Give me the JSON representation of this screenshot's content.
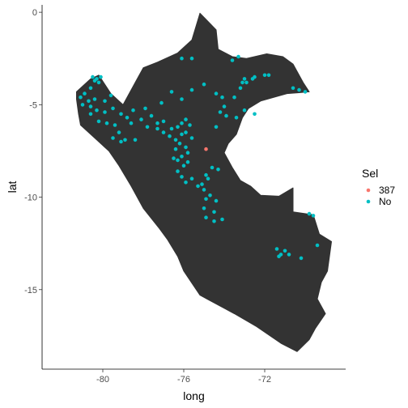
{
  "chart_data": {
    "type": "scatter",
    "xlabel": "long",
    "ylabel": "lat",
    "xlim": [
      -83,
      -68
    ],
    "ylim": [
      -19.3,
      0.4
    ],
    "x_ticks": [
      -80,
      -76,
      -72
    ],
    "x_tick_labels": [
      "-80",
      "-76",
      "-72"
    ],
    "y_ticks": [
      0,
      -5,
      -10,
      -15
    ],
    "y_tick_labels": [
      "0",
      "-5",
      "-10",
      "-15"
    ],
    "grid": false,
    "map_fill": "#333333",
    "map_outline": [
      [
        -75.2,
        -0.05
      ],
      [
        -74.4,
        -0.95
      ],
      [
        -74.3,
        -2.0
      ],
      [
        -73.6,
        -2.4
      ],
      [
        -72.9,
        -2.5
      ],
      [
        -71.9,
        -2.25
      ],
      [
        -71.1,
        -2.4
      ],
      [
        -70.6,
        -2.8
      ],
      [
        -70.1,
        -3.8
      ],
      [
        -69.8,
        -4.3
      ],
      [
        -70.3,
        -4.35
      ],
      [
        -70.9,
        -4.4
      ],
      [
        -72.2,
        -4.8
      ],
      [
        -72.8,
        -5.2
      ],
      [
        -73.1,
        -5.7
      ],
      [
        -73.4,
        -6.6
      ],
      [
        -73.8,
        -7.1
      ],
      [
        -74.0,
        -7.6
      ],
      [
        -73.6,
        -8.4
      ],
      [
        -73.2,
        -9.1
      ],
      [
        -72.7,
        -9.4
      ],
      [
        -72.2,
        -9.9
      ],
      [
        -71.3,
        -9.95
      ],
      [
        -70.6,
        -9.5
      ],
      [
        -70.6,
        -10.8
      ],
      [
        -69.6,
        -10.95
      ],
      [
        -69.3,
        -12.0
      ],
      [
        -68.7,
        -12.4
      ],
      [
        -68.9,
        -14.0
      ],
      [
        -69.2,
        -14.6
      ],
      [
        -69.4,
        -15.5
      ],
      [
        -69.0,
        -16.3
      ],
      [
        -69.5,
        -17.1
      ],
      [
        -69.8,
        -17.7
      ],
      [
        -70.4,
        -18.35
      ],
      [
        -71.2,
        -17.9
      ],
      [
        -72.4,
        -17.0
      ],
      [
        -73.5,
        -16.3
      ],
      [
        -75.2,
        -15.3
      ],
      [
        -76.0,
        -14.0
      ],
      [
        -76.3,
        -13.2
      ],
      [
        -76.8,
        -12.3
      ],
      [
        -77.2,
        -11.7
      ],
      [
        -78.0,
        -10.6
      ],
      [
        -78.6,
        -9.4
      ],
      [
        -79.2,
        -8.3
      ],
      [
        -79.7,
        -7.5
      ],
      [
        -80.3,
        -6.9
      ],
      [
        -81.1,
        -6.1
      ],
      [
        -81.2,
        -5.5
      ],
      [
        -81.3,
        -4.7
      ],
      [
        -81.3,
        -4.3
      ],
      [
        -80.6,
        -3.6
      ],
      [
        -80.2,
        -3.4
      ],
      [
        -79.6,
        -4.4
      ],
      [
        -79.0,
        -5.0
      ],
      [
        -78.3,
        -3.6
      ],
      [
        -78.0,
        -3.0
      ],
      [
        -77.3,
        -2.7
      ],
      [
        -76.3,
        -2.2
      ],
      [
        -75.6,
        -1.5
      ],
      [
        -75.2,
        -0.05
      ]
    ],
    "legend": {
      "title": "Sel",
      "position": "right",
      "entries": [
        {
          "label": "387",
          "color": "#F8766D"
        },
        {
          "label": "No",
          "color": "#00BFC4"
        }
      ]
    },
    "series": [
      {
        "name": "387",
        "color": "#F8766D",
        "points": [
          [
            -74.9,
            -7.4
          ]
        ]
      },
      {
        "name": "No",
        "color": "#00BFC4",
        "points": [
          [
            -80.3,
            -3.6
          ],
          [
            -80.2,
            -3.8
          ],
          [
            -80.5,
            -3.5
          ],
          [
            -80.4,
            -3.7
          ],
          [
            -80.1,
            -3.5
          ],
          [
            -80.6,
            -4.1
          ],
          [
            -80.9,
            -4.4
          ],
          [
            -81.1,
            -4.6
          ],
          [
            -80.7,
            -4.8
          ],
          [
            -80.4,
            -4.7
          ],
          [
            -81.0,
            -5.0
          ],
          [
            -80.6,
            -5.1
          ],
          [
            -80.3,
            -5.3
          ],
          [
            -79.9,
            -4.8
          ],
          [
            -79.6,
            -4.5
          ],
          [
            -79.5,
            -5.2
          ],
          [
            -79.9,
            -5.4
          ],
          [
            -80.6,
            -5.5
          ],
          [
            -80.2,
            -5.9
          ],
          [
            -79.8,
            -6.0
          ],
          [
            -79.4,
            -6.1
          ],
          [
            -79.1,
            -5.5
          ],
          [
            -78.8,
            -5.7
          ],
          [
            -79.2,
            -6.5
          ],
          [
            -79.5,
            -6.8
          ],
          [
            -79.1,
            -7.0
          ],
          [
            -78.9,
            -6.9
          ],
          [
            -78.4,
            -6.9
          ],
          [
            -77.9,
            -5.2
          ],
          [
            -77.6,
            -5.6
          ],
          [
            -77.3,
            -6.0
          ],
          [
            -77.0,
            -5.9
          ],
          [
            -76.6,
            -6.3
          ],
          [
            -76.3,
            -6.2
          ],
          [
            -76.1,
            -6.0
          ],
          [
            -75.9,
            -5.8
          ],
          [
            -75.7,
            -6.1
          ],
          [
            -77.8,
            -6.2
          ],
          [
            -77.3,
            -6.3
          ],
          [
            -77.0,
            -6.5
          ],
          [
            -76.7,
            -6.7
          ],
          [
            -76.4,
            -6.9
          ],
          [
            -76.1,
            -6.6
          ],
          [
            -75.9,
            -6.5
          ],
          [
            -75.6,
            -6.8
          ],
          [
            -76.2,
            -7.1
          ],
          [
            -75.9,
            -7.3
          ],
          [
            -76.4,
            -7.4
          ],
          [
            -75.8,
            -7.6
          ],
          [
            -76.1,
            -7.8
          ],
          [
            -76.5,
            -7.9
          ],
          [
            -76.3,
            -8.0
          ],
          [
            -75.8,
            -8.1
          ],
          [
            -76.0,
            -8.3
          ],
          [
            -76.3,
            -8.6
          ],
          [
            -76.1,
            -8.9
          ],
          [
            -75.9,
            -9.2
          ],
          [
            -75.6,
            -9.0
          ],
          [
            -75.3,
            -9.4
          ],
          [
            -75.0,
            -9.6
          ],
          [
            -74.7,
            -9.9
          ],
          [
            -74.4,
            -10.2
          ],
          [
            -74.9,
            -10.1
          ],
          [
            -75.0,
            -10.6
          ],
          [
            -74.5,
            -10.8
          ],
          [
            -74.9,
            -11.1
          ],
          [
            -74.5,
            -11.3
          ],
          [
            -74.1,
            -11.2
          ],
          [
            -74.6,
            -8.4
          ],
          [
            -74.3,
            -8.5
          ],
          [
            -74.9,
            -8.8
          ],
          [
            -75.1,
            -9.3
          ],
          [
            -74.8,
            -9.0
          ],
          [
            -74.4,
            -6.2
          ],
          [
            -74.2,
            -5.4
          ],
          [
            -74.0,
            -5.1
          ],
          [
            -73.5,
            -4.6
          ],
          [
            -73.2,
            -4.1
          ],
          [
            -72.9,
            -3.8
          ],
          [
            -72.6,
            -3.6
          ],
          [
            -72.5,
            -3.5
          ],
          [
            -72.0,
            -3.4
          ],
          [
            -73.4,
            -5.7
          ],
          [
            -73.9,
            -5.6
          ],
          [
            -74.1,
            -4.6
          ],
          [
            -74.4,
            -4.4
          ],
          [
            -75.6,
            -4.2
          ],
          [
            -76.1,
            -4.7
          ],
          [
            -76.6,
            -4.3
          ],
          [
            -77.1,
            -4.9
          ],
          [
            -75.0,
            -3.9
          ],
          [
            -75.6,
            -2.5
          ],
          [
            -76.1,
            -2.5
          ],
          [
            -73.3,
            -2.4
          ],
          [
            -73.6,
            -2.6
          ],
          [
            -73.1,
            -3.8
          ],
          [
            -73.0,
            -3.6
          ],
          [
            -70.6,
            -4.1
          ],
          [
            -70.3,
            -4.2
          ],
          [
            -70.0,
            -4.3
          ],
          [
            -71.8,
            -3.4
          ],
          [
            -73.0,
            -5.3
          ],
          [
            -72.5,
            -5.5
          ],
          [
            -69.8,
            -10.9
          ],
          [
            -69.6,
            -11.0
          ],
          [
            -69.4,
            -12.6
          ],
          [
            -71.4,
            -12.8
          ],
          [
            -71.0,
            -12.9
          ],
          [
            -70.8,
            -13.1
          ],
          [
            -71.2,
            -13.1
          ],
          [
            -71.3,
            -13.2
          ],
          [
            -70.2,
            -13.3
          ],
          [
            -78.5,
            -5.3
          ],
          [
            -78.1,
            -5.8
          ],
          [
            -78.6,
            -6.0
          ]
        ]
      }
    ]
  }
}
